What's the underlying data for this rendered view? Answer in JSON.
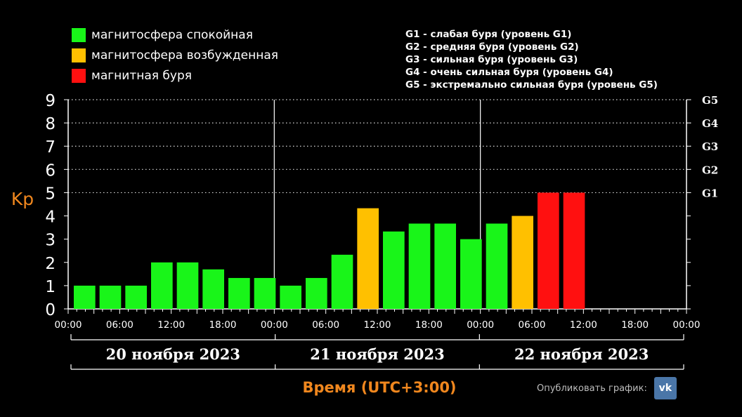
{
  "legend": [
    {
      "label": "магнитосфера спокойная",
      "color": "#19f519"
    },
    {
      "label": "магнитосфера возбужденная",
      "color": "#ffc000"
    },
    {
      "label": "магнитная буря",
      "color": "#ff1010"
    }
  ],
  "storm_levels": [
    "G1 - слабая буря (уровень G1)",
    "G2 - средняя буря (уровень G2)",
    "G3 - сильная буря (уровень G3)",
    "G4 - очень сильная буря (уровень G4)",
    "G5 - экстремально сильная буря (уровень G5)"
  ],
  "share": {
    "label": "Опубликовать график:",
    "icon": "vk-icon",
    "icon_text": "vk"
  },
  "chart_data": {
    "type": "bar",
    "ylabel": "Kp",
    "xlabel": "Время (UTC+3:00)",
    "ylim": [
      0,
      9
    ],
    "yticks": [
      "0",
      "1",
      "2",
      "3",
      "4",
      "5",
      "6",
      "7",
      "8",
      "9"
    ],
    "right_ticks": [
      {
        "label": "G1",
        "value": 5
      },
      {
        "label": "G2",
        "value": 6
      },
      {
        "label": "G3",
        "value": 7
      },
      {
        "label": "G4",
        "value": 8
      },
      {
        "label": "G5",
        "value": 9
      }
    ],
    "days": [
      "20 ноября 2023",
      "21 ноября 2023",
      "22 ноября 2023"
    ],
    "x_tick_labels": [
      "00:00",
      "06:00",
      "12:00",
      "18:00",
      "00:00",
      "06:00",
      "12:00",
      "18:00",
      "00:00",
      "06:00",
      "12:00",
      "18:00",
      "00:00"
    ],
    "intervals_per_day": 8,
    "values": [
      1.0,
      1.0,
      1.0,
      2.0,
      2.0,
      1.7,
      1.33,
      1.33,
      1.0,
      1.33,
      2.33,
      4.33,
      3.33,
      3.67,
      3.67,
      3.0,
      3.67,
      4.0,
      5.0,
      5.0
    ],
    "colors": {
      "quiet": "#19f519",
      "active": "#ffc000",
      "storm": "#ff1010"
    },
    "grid": true,
    "legend_position": "top-left"
  }
}
